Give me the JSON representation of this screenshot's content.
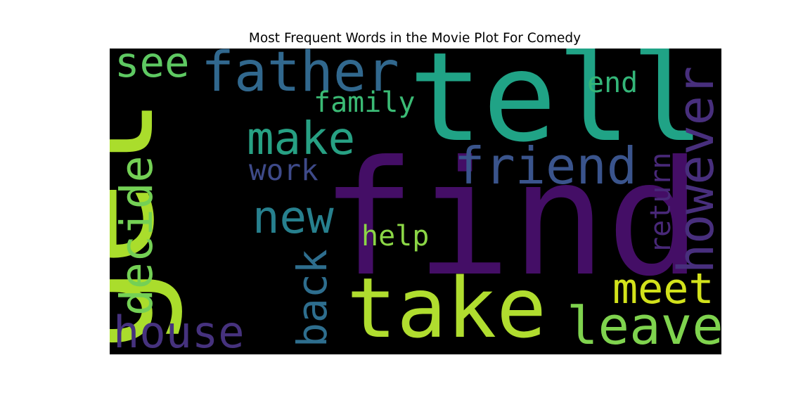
{
  "chart_data": {
    "type": "wordcloud",
    "title": "Most Frequent Words in the Movie Plot For Comedy",
    "background_color": "#000000",
    "words": [
      {
        "text": "find",
        "color": "#440e66"
      },
      {
        "text": "get",
        "color": "#aadd2c"
      },
      {
        "text": "tell",
        "color": "#20a386"
      },
      {
        "text": "take",
        "color": "#b0dd2f"
      },
      {
        "text": "father",
        "color": "#31688e"
      },
      {
        "text": "friend",
        "color": "#3a548c"
      },
      {
        "text": "make",
        "color": "#27a083"
      },
      {
        "text": "leave",
        "color": "#7fd34e"
      },
      {
        "text": "however",
        "color": "#482f7d"
      },
      {
        "text": "decide",
        "color": "#74d055"
      },
      {
        "text": "house",
        "color": "#46327e"
      },
      {
        "text": "back",
        "color": "#2e6e8e"
      },
      {
        "text": "new",
        "color": "#27808e"
      },
      {
        "text": "meet",
        "color": "#d2e21b"
      },
      {
        "text": "see",
        "color": "#5ec962"
      },
      {
        "text": "family",
        "color": "#3bbb75"
      },
      {
        "text": "return",
        "color": "#482878"
      },
      {
        "text": "work",
        "color": "#3e4a89"
      },
      {
        "text": "help",
        "color": "#8bd646"
      },
      {
        "text": "end",
        "color": "#34b679"
      }
    ]
  }
}
